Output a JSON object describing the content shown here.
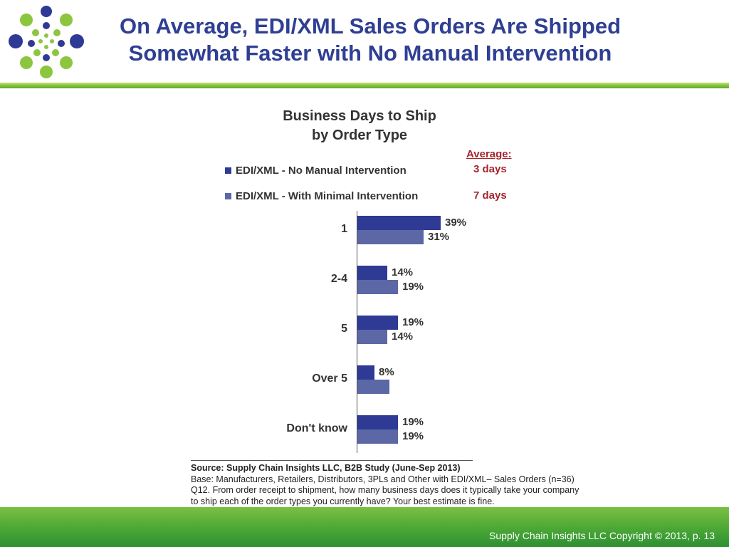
{
  "header": {
    "title_line1": "On Average, EDI/XML Sales Orders Are Shipped",
    "title_line2": "Somewhat Faster with No Manual Intervention"
  },
  "colors": {
    "title": "#2f3f93",
    "series1": "#2e3a94",
    "series2": "#5c67a6",
    "average_label": "#a5262e",
    "green": "#4ea935"
  },
  "chart_data": {
    "type": "bar",
    "orientation": "horizontal",
    "title_line1": "Business Days to Ship",
    "title_line2": "by Order Type",
    "categories": [
      "1",
      "2-4",
      "5",
      "Over 5",
      "Don't know"
    ],
    "series": [
      {
        "name": "EDI/XML - No Manual Intervention",
        "values": [
          39,
          14,
          19,
          8,
          19
        ],
        "labels": [
          "39%",
          "14%",
          "19%",
          "8%",
          "19%"
        ],
        "average": "3 days"
      },
      {
        "name": "EDI/XML - With Minimal Intervention",
        "values": [
          31,
          19,
          14,
          15,
          19
        ],
        "labels": [
          "31%",
          "19%",
          "14%",
          "",
          "19%"
        ],
        "average": "7 days"
      }
    ],
    "average_heading": "Average:",
    "unit": "%"
  },
  "source": {
    "line1": "Source:  Supply Chain Insights LLC, B2B Study (June-Sep 2013)",
    "line2": "Base:  Manufacturers, Retailers, Distributors, 3PLs and Other with EDI/XML– Sales Orders (n=36)",
    "line3": "Q12. From order receipt to shipment, how many business days does it typically take your company",
    "line4": "to ship each of the order types you currently have?  Your best estimate is fine."
  },
  "footer": {
    "copyright": "Supply Chain Insights LLC Copyright © 2013, p. 13"
  }
}
